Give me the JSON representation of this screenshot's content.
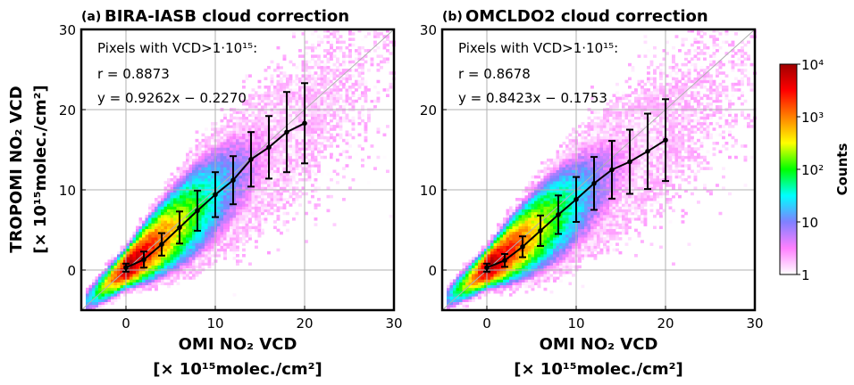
{
  "chart_data": [
    {
      "type": "heatmap",
      "panel_label": "(a)",
      "title": "BIRA-IASB cloud correction",
      "xlabel_line1": "OMI NO₂ VCD",
      "xlabel_line2": "[× 10¹⁵molec./cm²]",
      "ylabel_line1": "TROPOMI NO₂ VCD",
      "ylabel_line2": "[× 10¹⁵molec./cm²]",
      "xlim": [
        -5,
        30
      ],
      "ylim": [
        -5,
        30
      ],
      "xticks": [
        "0",
        "10",
        "20",
        "30"
      ],
      "yticks": [
        "0",
        "10",
        "20",
        "30"
      ],
      "grid": true,
      "annotation_line1": "Pixels with VCD>1·10¹⁵:",
      "annotation_r": "r = 0.8873",
      "annotation_fit": "y = 0.9262x − 0.2270",
      "slope": 0.9262,
      "binned_means": {
        "x": [
          0,
          2,
          4,
          6,
          8,
          10,
          12,
          14,
          16,
          18,
          20
        ],
        "y": [
          0.3,
          1.3,
          3.2,
          5.3,
          7.4,
          9.4,
          11.2,
          13.8,
          15.3,
          17.2,
          18.3
        ],
        "err": [
          0.5,
          1.0,
          1.4,
          2.0,
          2.5,
          2.8,
          3.0,
          3.4,
          3.9,
          5.0,
          5.0
        ]
      }
    },
    {
      "type": "heatmap",
      "panel_label": "(b)",
      "title": "OMCLDO2 cloud correction",
      "xlabel_line1": "OMI NO₂ VCD",
      "xlabel_line2": "[× 10¹⁵molec./cm²]",
      "xlim": [
        -5,
        30
      ],
      "ylim": [
        -5,
        30
      ],
      "xticks": [
        "0",
        "10",
        "20",
        "30"
      ],
      "yticks": [
        "0",
        "10",
        "20",
        "30"
      ],
      "grid": true,
      "annotation_line1": "Pixels with VCD>1·10¹⁵:",
      "annotation_r": "r = 0.8678",
      "annotation_fit": "y = 0.8423x − 0.1753",
      "slope": 0.8423,
      "binned_means": {
        "x": [
          0,
          2,
          4,
          6,
          8,
          10,
          12,
          14,
          16,
          18,
          20
        ],
        "y": [
          0.3,
          1.2,
          2.9,
          4.9,
          6.9,
          8.8,
          10.8,
          12.5,
          13.5,
          14.8,
          16.2
        ],
        "err": [
          0.5,
          0.8,
          1.3,
          1.9,
          2.4,
          2.8,
          3.3,
          3.6,
          4.0,
          4.7,
          5.1
        ]
      }
    }
  ],
  "colorbar": {
    "label": "Counts",
    "scale": "log",
    "range": [
      1,
      10000
    ],
    "ticks": [
      "1",
      "10",
      "10²",
      "10³",
      "10⁴"
    ],
    "colors": [
      "#ffffff",
      "#ff80ff",
      "#8080ff",
      "#00ffff",
      "#00ff00",
      "#ffff00",
      "#ff8000",
      "#ff0000",
      "#a00000"
    ]
  }
}
